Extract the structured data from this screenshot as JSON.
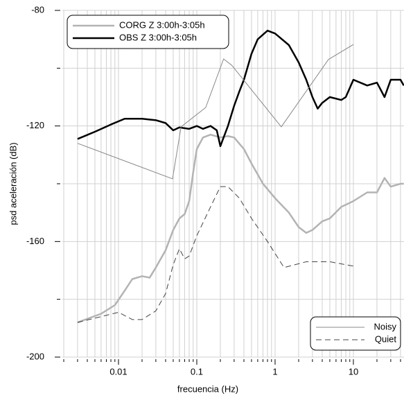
{
  "chart_data": {
    "type": "line",
    "xlabel": "frecuencia (Hz)",
    "ylabel": "psd aceleración (dB)",
    "xscale": "log",
    "xlim": [
      0.00192,
      44.3
    ],
    "ylim": [
      -200,
      -80
    ],
    "xticks": [
      0.01,
      0.1,
      1,
      10
    ],
    "xminor": [
      0.002,
      0.003,
      0.004,
      0.005,
      0.006,
      0.007,
      0.008,
      0.009,
      0.02,
      0.03,
      0.04,
      0.05,
      0.06,
      0.07,
      0.08,
      0.09,
      0.2,
      0.3,
      0.4,
      0.5,
      0.6,
      0.7,
      0.8,
      0.9,
      2,
      3,
      4,
      5,
      6,
      7,
      8,
      9,
      20,
      30,
      40
    ],
    "yticks": [
      -200,
      -160,
      -120,
      -80
    ],
    "yminor": [
      -180,
      -140,
      -100
    ],
    "grid": true,
    "series": [
      {
        "name": "CORG Z 3:00h-3:05h",
        "color": "#b3b3b3",
        "width": 2.5,
        "linestyle": "solid",
        "legend": "upper left",
        "x": [
          0.003,
          0.006,
          0.009,
          0.012,
          0.015,
          0.02,
          0.025,
          0.03,
          0.04,
          0.05,
          0.06,
          0.07,
          0.08,
          0.09,
          0.1,
          0.12,
          0.15,
          0.2,
          0.25,
          0.3,
          0.4,
          0.5,
          0.7,
          1,
          1.5,
          2,
          2.5,
          3,
          4,
          5,
          7,
          10,
          15,
          20,
          25,
          30,
          40,
          44
        ],
        "values": [
          -188,
          -185,
          -182,
          -177,
          -173,
          -172,
          -172.5,
          -169,
          -163,
          -156,
          -152,
          -150.5,
          -146,
          -136,
          -128,
          -124,
          -123,
          -124,
          -123.5,
          -124,
          -128,
          -133,
          -140,
          -145,
          -150,
          -155,
          -157,
          -156,
          -153,
          -152,
          -148,
          -146,
          -143,
          -143,
          -138,
          -141,
          -140,
          -140
        ]
      },
      {
        "name": "OBS Z 3:00h-3:05h",
        "color": "#000000",
        "width": 2.5,
        "linestyle": "solid",
        "legend": "upper left",
        "x": [
          0.003,
          0.005,
          0.008,
          0.012,
          0.02,
          0.03,
          0.04,
          0.05,
          0.06,
          0.08,
          0.1,
          0.12,
          0.15,
          0.18,
          0.2,
          0.22,
          0.25,
          0.3,
          0.35,
          0.4,
          0.5,
          0.6,
          0.8,
          1,
          1.5,
          2,
          2.5,
          3,
          3.5,
          4,
          5,
          7,
          8,
          10,
          15,
          20,
          25,
          30,
          40,
          44
        ],
        "values": [
          -124.5,
          -122,
          -119.5,
          -117.5,
          -117.5,
          -118,
          -119,
          -121.5,
          -120.5,
          -121,
          -120,
          -121,
          -120,
          -121.5,
          -127,
          -124,
          -120,
          -113,
          -108,
          -104,
          -95,
          -90,
          -87,
          -88,
          -92,
          -98,
          -104,
          -110,
          -114,
          -112,
          -110,
          -111,
          -110,
          -104,
          -106,
          -105,
          -110,
          -104,
          -104,
          -106
        ]
      },
      {
        "name": "Noisy",
        "color": "#888888",
        "width": 1,
        "linestyle": "solid",
        "legend": "lower right",
        "x": [
          0.003,
          0.049,
          0.063,
          0.13,
          0.22,
          0.28,
          1.2,
          4.8,
          10
        ],
        "values": [
          -126,
          -138.3,
          -120.3,
          -113.6,
          -96.8,
          -99,
          -120.3,
          -97,
          -91.8
        ]
      },
      {
        "name": "Quiet",
        "color": "#444444",
        "width": 1,
        "linestyle": "dashed",
        "legend": "lower right",
        "x": [
          0.003,
          0.01,
          0.015,
          0.02,
          0.03,
          0.04,
          0.05,
          0.06,
          0.07,
          0.08,
          0.1,
          0.15,
          0.2,
          0.25,
          0.35,
          0.5,
          0.8,
          1.3,
          2.5,
          5,
          10
        ],
        "values": [
          -188,
          -184.5,
          -187,
          -187,
          -184,
          -178,
          -168,
          -162.5,
          -166,
          -165,
          -158,
          -148,
          -141,
          -141,
          -145,
          -152,
          -160,
          -169,
          -167,
          -167,
          -168.5
        ]
      }
    ]
  }
}
